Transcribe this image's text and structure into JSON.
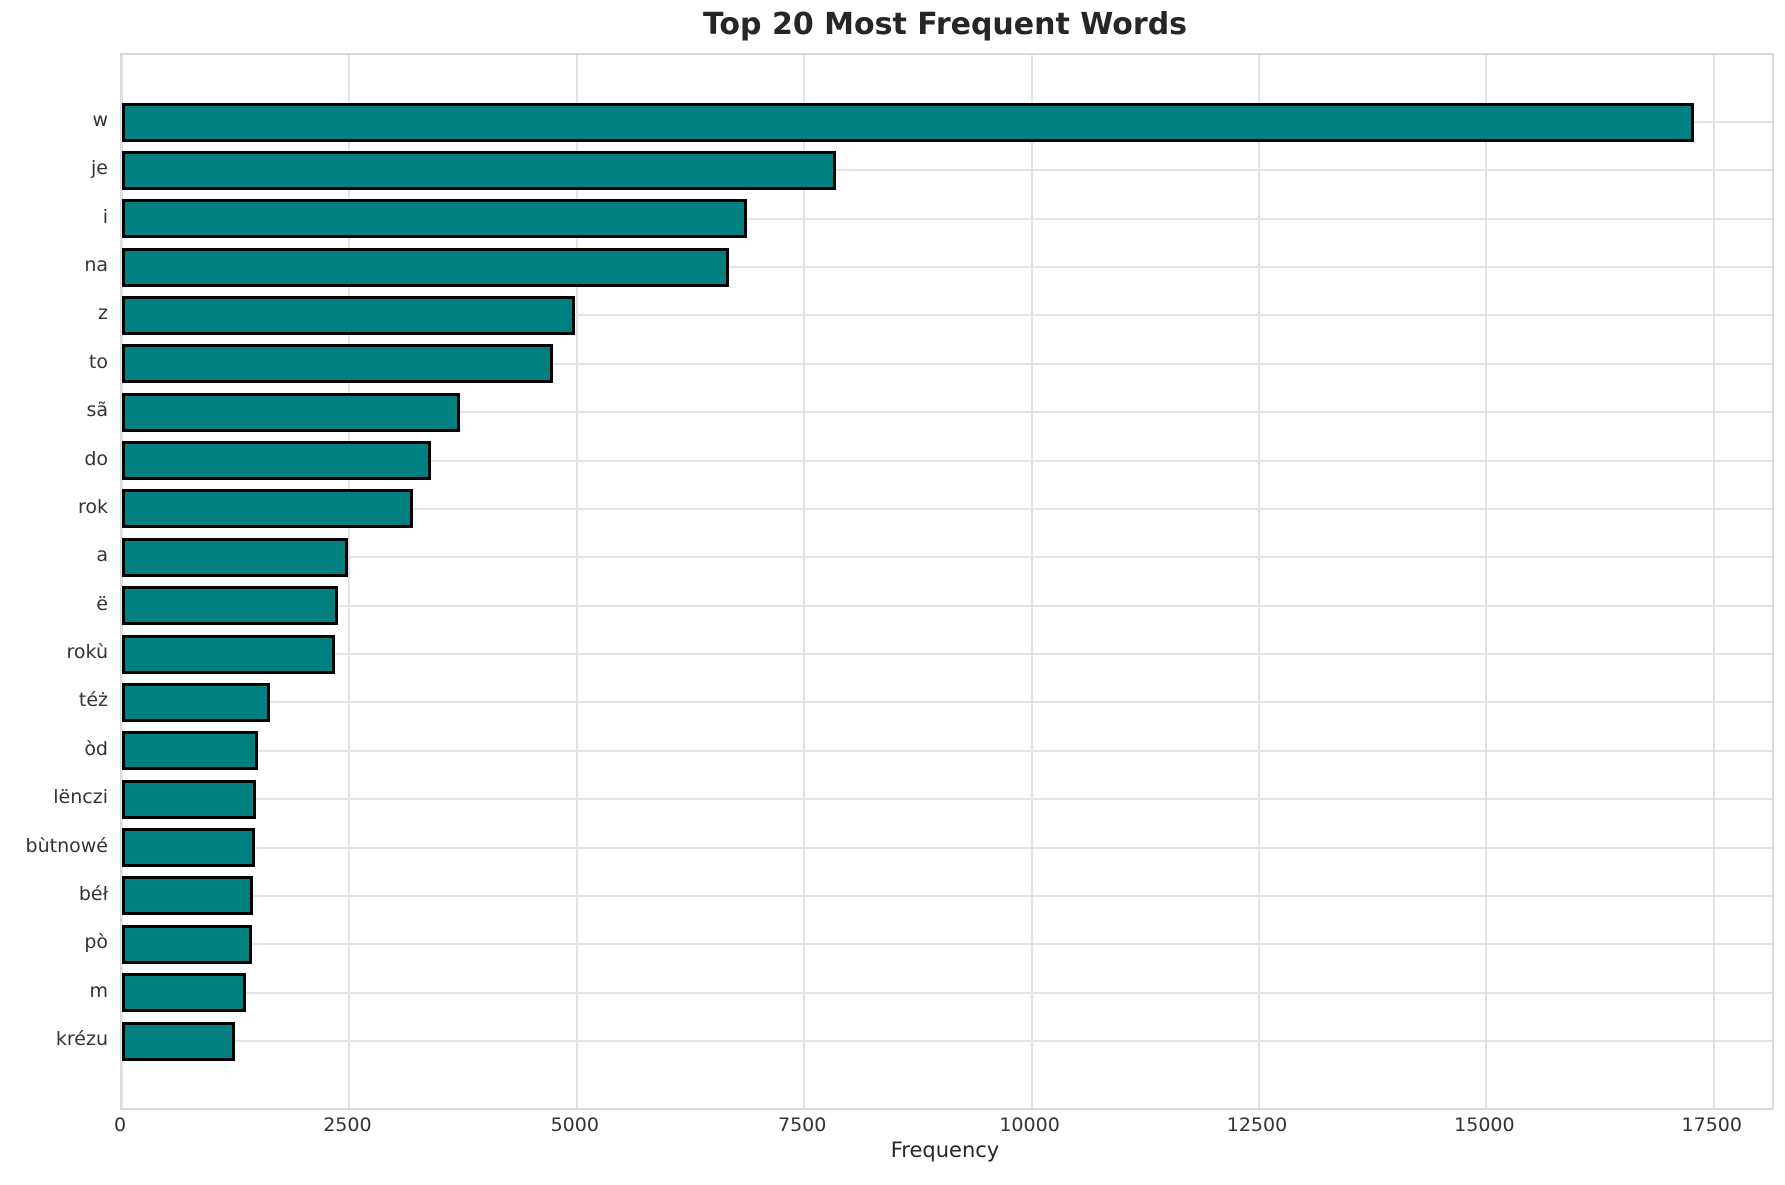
{
  "title": "Top 20 Most Frequent Words",
  "chart_data": {
    "type": "bar",
    "orientation": "horizontal",
    "title": "Top 20 Most Frequent Words",
    "xlabel": "Frequency",
    "ylabel": "",
    "categories": [
      "w",
      "je",
      "i",
      "na",
      "z",
      "to",
      "sã",
      "do",
      "rok",
      "a",
      "ë",
      "rokù",
      "téż",
      "òd",
      "lënczi",
      "bùtnowé",
      "béł",
      "pò",
      "m",
      "krézu"
    ],
    "values": [
      17280,
      7855,
      6875,
      6675,
      4980,
      4735,
      3715,
      3395,
      3195,
      2490,
      2380,
      2340,
      1630,
      1490,
      1478,
      1460,
      1445,
      1430,
      1358,
      1240
    ],
    "xticks": [
      0,
      2500,
      5000,
      7500,
      10000,
      12500,
      15000,
      17500
    ],
    "xlim": [
      0,
      18140
    ],
    "grid": true,
    "legend": null,
    "bar_color": "#008080",
    "bar_edge_color": "#000000",
    "grid_color": "#e3e3e3",
    "background_color": "#ffffff"
  }
}
